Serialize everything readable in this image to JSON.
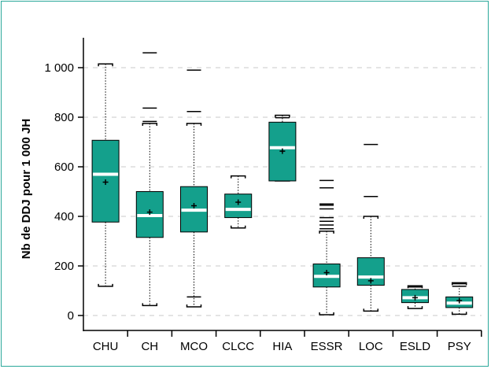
{
  "chart_data": {
    "type": "box",
    "ylabel": "Nb de DDJ pour 1 000 JH",
    "xlabel": "",
    "ylim": [
      -40,
      1100
    ],
    "yticks": [
      0,
      200,
      400,
      600,
      800,
      1000
    ],
    "ytick_labels": [
      "0",
      "200",
      "400",
      "600",
      "800",
      "1 000"
    ],
    "grid": "horizontal dashed",
    "colors": {
      "box": "#14a08c",
      "median": "#ffffff",
      "grid": "#c8c8c8",
      "frame": "#2aa89a"
    },
    "categories": [
      "CHU",
      "CH",
      "MCO",
      "CLCC",
      "HIA",
      "ESSR",
      "LOC",
      "ESLD",
      "PSY"
    ],
    "boxes": [
      {
        "label": "CHU",
        "whisker_low": 118,
        "q1": 377,
        "median": 570,
        "mean": 538,
        "q3": 707,
        "whisker_high": 1015,
        "outliers": []
      },
      {
        "label": "CH",
        "whisker_low": 40,
        "q1": 315,
        "median": 403,
        "mean": 417,
        "q3": 500,
        "whisker_high": 775,
        "outliers": [
          783,
          837,
          1060
        ]
      },
      {
        "label": "MCO",
        "whisker_low": 35,
        "q1": 337,
        "median": 425,
        "mean": 443,
        "q3": 520,
        "whisker_high": 775,
        "outliers": [
          75,
          823,
          990
        ]
      },
      {
        "label": "CLCC",
        "whisker_low": 353,
        "q1": 395,
        "median": 428,
        "mean": 457,
        "q3": 490,
        "whisker_high": 563,
        "outliers": []
      },
      {
        "label": "HIA",
        "whisker_low": 543,
        "q1": 543,
        "median": 677,
        "mean": 663,
        "q3": 780,
        "whisker_high": 808,
        "outliers": [
          798
        ]
      },
      {
        "label": "ESSR",
        "whisker_low": 3,
        "q1": 115,
        "median": 158,
        "mean": 173,
        "q3": 208,
        "whisker_high": 340,
        "outliers": [
          350,
          365,
          380,
          395,
          430,
          445,
          450,
          515,
          545
        ]
      },
      {
        "label": "LOC",
        "whisker_low": 18,
        "q1": 122,
        "median": 155,
        "mean": 140,
        "q3": 233,
        "whisker_high": 400,
        "outliers": [
          480,
          690
        ]
      },
      {
        "label": "ESLD",
        "whisker_low": 28,
        "q1": 52,
        "median": 72,
        "mean": 72,
        "q3": 105,
        "whisker_high": 120,
        "outliers": [
          115
        ]
      },
      {
        "label": "PSY",
        "whisker_low": 5,
        "q1": 32,
        "median": 50,
        "mean": 60,
        "q3": 75,
        "whisker_high": 132,
        "outliers": [
          118,
          128
        ]
      }
    ]
  }
}
